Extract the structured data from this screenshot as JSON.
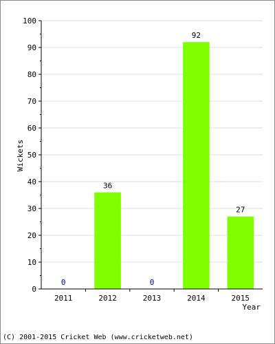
{
  "chart_data": {
    "type": "bar",
    "categories": [
      "2011",
      "2012",
      "2013",
      "2014",
      "2015"
    ],
    "values": [
      0,
      36,
      0,
      92,
      27
    ],
    "data_labels": [
      "0",
      "36",
      "0",
      "92",
      "27"
    ],
    "ylabel": "Wickets",
    "xlabel": "Year",
    "ylim": [
      0,
      100
    ],
    "ytick_labels": [
      "0",
      "10",
      "20",
      "30",
      "40",
      "50",
      "60",
      "70",
      "80",
      "90",
      "100"
    ],
    "grid": true,
    "legend": "none",
    "colors": {
      "bar": "#80ff00",
      "zero_label": "#00008b",
      "label": "#000000",
      "grid": "#dcdcdc",
      "axis": "#000000"
    }
  },
  "footer": {
    "copyright": "(C) 2001-2015 Cricket Web (www.cricketweb.net)"
  }
}
